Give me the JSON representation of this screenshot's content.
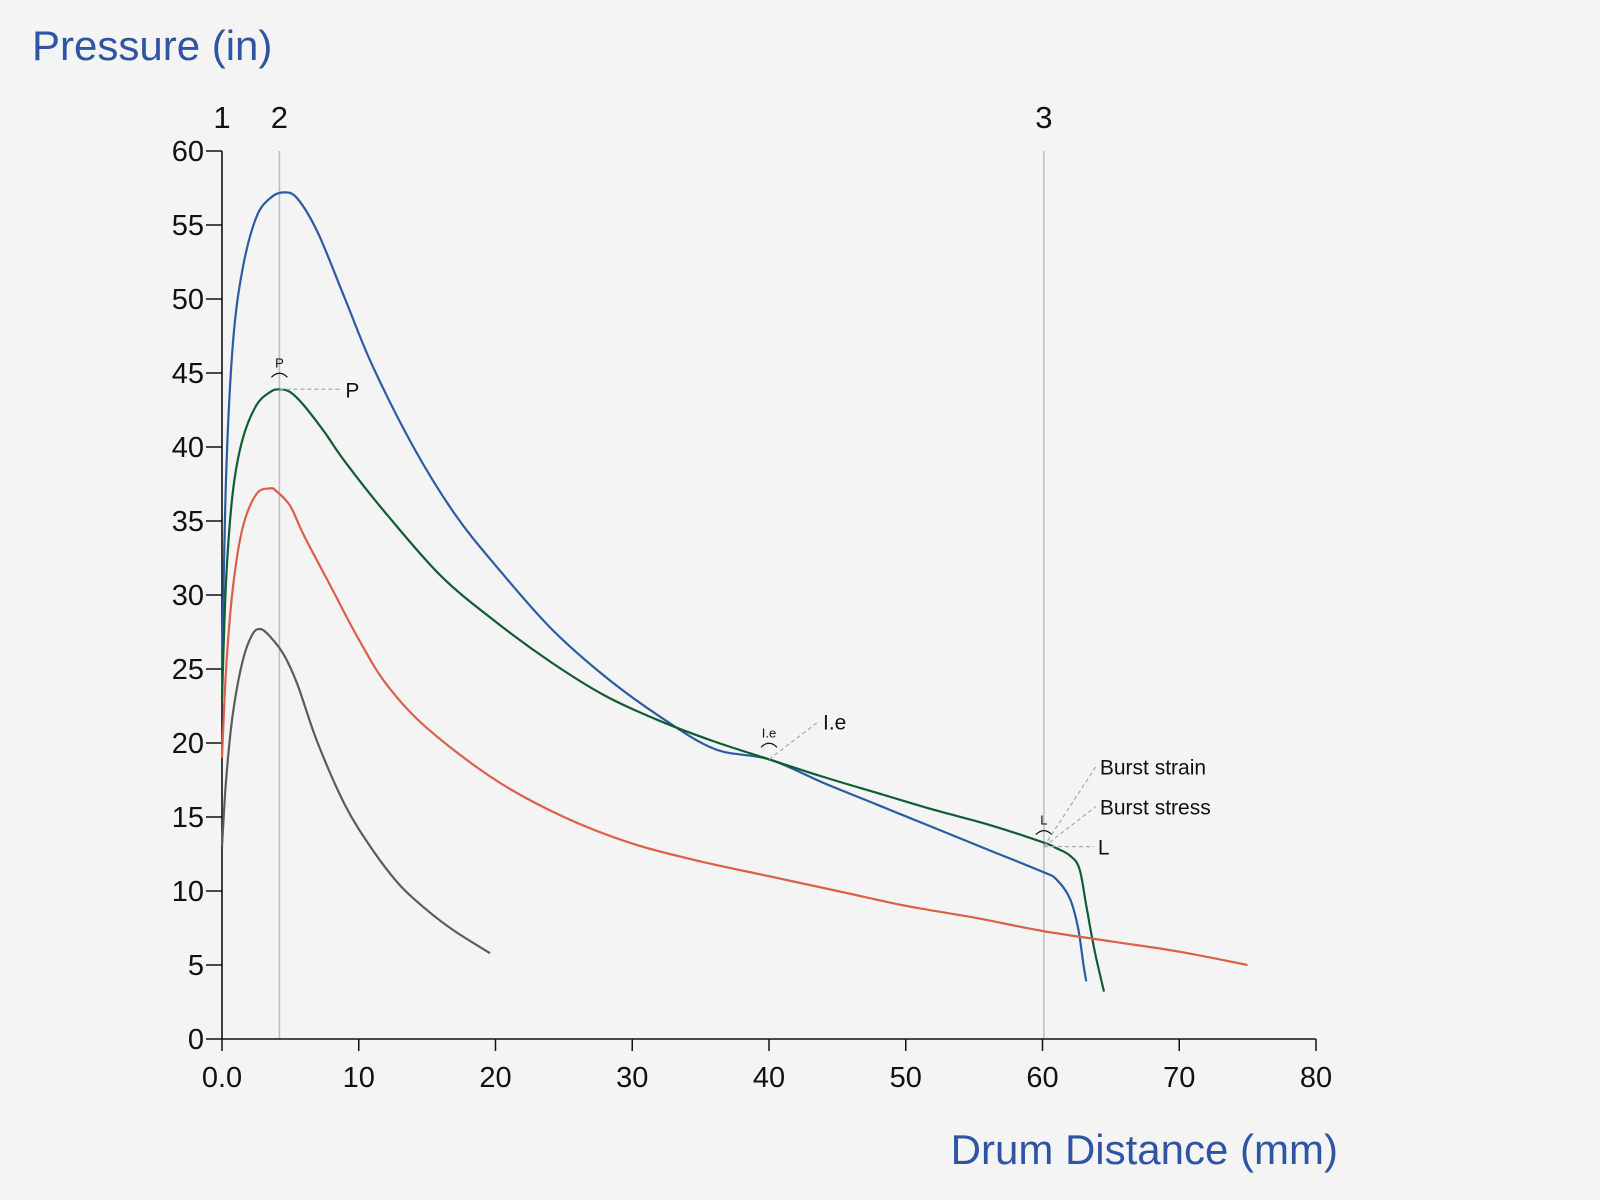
{
  "chart_data": {
    "type": "line",
    "ylabel": "Pressure (in)",
    "xlabel": "Drum Distance (mm)",
    "xlim": [
      0,
      80
    ],
    "ylim": [
      0,
      60
    ],
    "x_ticks": [
      0,
      10,
      20,
      30,
      40,
      50,
      60,
      70,
      80
    ],
    "x_tick_labels": [
      "0.0",
      "10",
      "20",
      "30",
      "40",
      "50",
      "60",
      "70",
      "80"
    ],
    "y_ticks": [
      0,
      5,
      10,
      15,
      20,
      25,
      30,
      35,
      40,
      45,
      50,
      55,
      60
    ],
    "y_tick_labels": [
      "0",
      "5",
      "10",
      "15",
      "20",
      "25",
      "30",
      "35",
      "40",
      "45",
      "50",
      "55",
      "60"
    ],
    "grid": false,
    "legend": "none",
    "vertical_markers": [
      {
        "label": "1",
        "x": 0,
        "line": false
      },
      {
        "label": "2",
        "x": 4.2,
        "line": true
      },
      {
        "label": "3",
        "x": 60.1,
        "line": true
      }
    ],
    "series": [
      {
        "color": "#2b5ca3",
        "points": [
          [
            0,
            25
          ],
          [
            0.3,
            38
          ],
          [
            0.8,
            47
          ],
          [
            1.5,
            52
          ],
          [
            2.5,
            55.5
          ],
          [
            3.5,
            56.8
          ],
          [
            4.5,
            57.2
          ],
          [
            5.5,
            56.8
          ],
          [
            7,
            54.5
          ],
          [
            9,
            50
          ],
          [
            11,
            45.5
          ],
          [
            14,
            40
          ],
          [
            17,
            35.5
          ],
          [
            20,
            32
          ],
          [
            24,
            27.8
          ],
          [
            28,
            24.5
          ],
          [
            32,
            21.8
          ],
          [
            36,
            19.6
          ],
          [
            40,
            18.9
          ],
          [
            44,
            17.3
          ],
          [
            48,
            15.8
          ],
          [
            52,
            14.3
          ],
          [
            56,
            12.8
          ],
          [
            60,
            11.3
          ],
          [
            61,
            10.8
          ],
          [
            62,
            9.5
          ],
          [
            62.6,
            7.5
          ],
          [
            63,
            5
          ],
          [
            63.2,
            3.9
          ]
        ]
      },
      {
        "color": "#0f5e32",
        "points": [
          [
            0,
            23
          ],
          [
            0.3,
            31
          ],
          [
            0.8,
            37
          ],
          [
            1.5,
            40.5
          ],
          [
            2.5,
            42.8
          ],
          [
            3.5,
            43.7
          ],
          [
            4.2,
            43.9
          ],
          [
            5,
            43.7
          ],
          [
            6,
            42.8
          ],
          [
            7.5,
            41
          ],
          [
            9,
            39
          ],
          [
            12,
            35.5
          ],
          [
            16,
            31.3
          ],
          [
            20,
            28.2
          ],
          [
            24,
            25.5
          ],
          [
            28,
            23.2
          ],
          [
            32,
            21.5
          ],
          [
            36,
            20.1
          ],
          [
            40,
            18.9
          ],
          [
            44,
            17.7
          ],
          [
            48,
            16.6
          ],
          [
            52,
            15.5
          ],
          [
            56,
            14.5
          ],
          [
            60,
            13.3
          ],
          [
            61,
            12.9
          ],
          [
            62,
            12.4
          ],
          [
            62.7,
            11.5
          ],
          [
            63.2,
            9
          ],
          [
            63.8,
            6
          ],
          [
            64.5,
            3.2
          ]
        ]
      },
      {
        "color": "#dc6049",
        "points": [
          [
            0,
            19
          ],
          [
            0.3,
            25
          ],
          [
            0.8,
            30.5
          ],
          [
            1.5,
            34.5
          ],
          [
            2.5,
            36.8
          ],
          [
            3.5,
            37.2
          ],
          [
            4,
            37
          ],
          [
            5,
            36
          ],
          [
            6,
            34
          ],
          [
            8,
            30.5
          ],
          [
            10,
            27
          ],
          [
            12,
            24
          ],
          [
            15,
            21
          ],
          [
            20,
            17.5
          ],
          [
            25,
            15
          ],
          [
            30,
            13.2
          ],
          [
            35,
            12
          ],
          [
            40,
            11
          ],
          [
            45,
            10
          ],
          [
            50,
            9
          ],
          [
            55,
            8.2
          ],
          [
            60,
            7.3
          ],
          [
            65,
            6.6
          ],
          [
            70,
            5.9
          ],
          [
            75,
            5
          ]
        ]
      },
      {
        "color": "#5c5c5c",
        "points": [
          [
            0,
            13
          ],
          [
            0.3,
            17.5
          ],
          [
            0.8,
            22
          ],
          [
            1.5,
            25.5
          ],
          [
            2.2,
            27.3
          ],
          [
            2.8,
            27.7
          ],
          [
            3.5,
            27.2
          ],
          [
            4.5,
            26
          ],
          [
            5.5,
            24
          ],
          [
            7,
            20
          ],
          [
            9,
            15.8
          ],
          [
            11,
            12.8
          ],
          [
            13,
            10.4
          ],
          [
            15,
            8.7
          ],
          [
            17,
            7.3
          ],
          [
            19.6,
            5.8
          ]
        ]
      }
    ],
    "annotations": [
      {
        "text": "P",
        "small_text": "P",
        "x": 4.2,
        "y": 43.9
      },
      {
        "text": "I.e",
        "small_text": "I.e",
        "x": 40,
        "y": 18.9
      },
      {
        "text": "L",
        "small_text": "L",
        "x": 60.1,
        "y": 13
      },
      {
        "text": "Burst strain",
        "x": 60.1,
        "y": 13
      },
      {
        "text": "Burst stress",
        "x": 60.1,
        "y": 13
      }
    ]
  }
}
